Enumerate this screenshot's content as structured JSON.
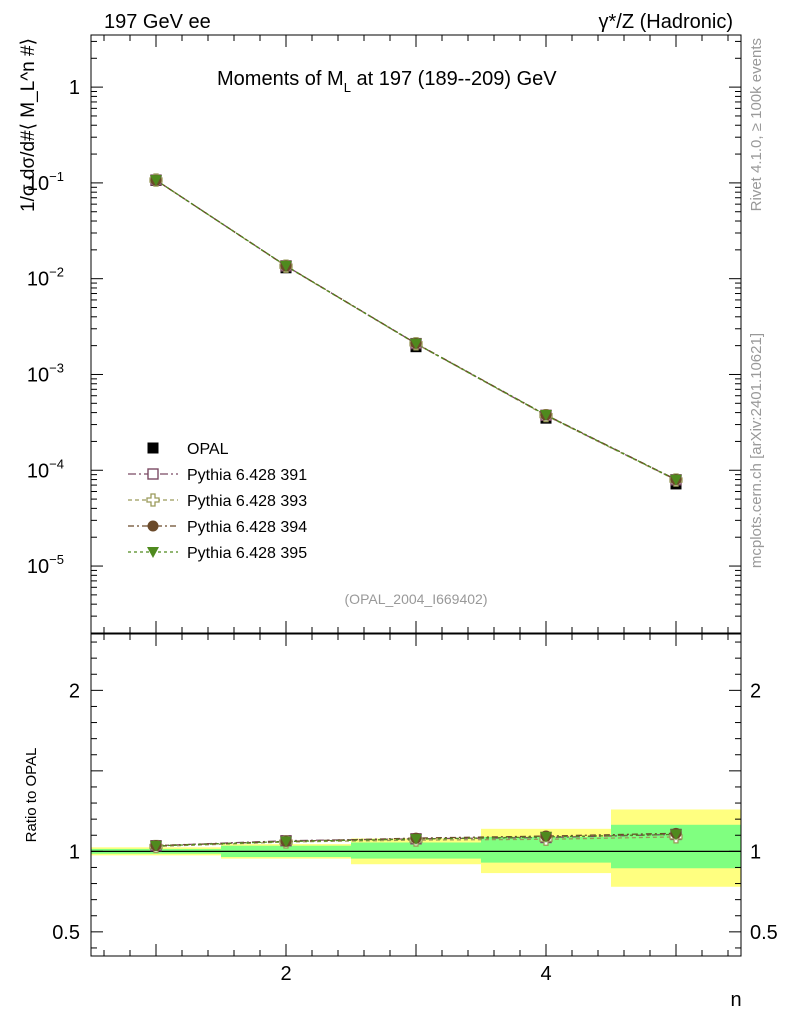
{
  "header": {
    "left": "197 GeV ee",
    "right": "γ*/Z (Hadronic)"
  },
  "side_labels": {
    "rivet": "Rivet 4.1.0, ≥ 100k events",
    "mcplots": "mcplots.cern.ch [arXiv:2401.10621]"
  },
  "colors": {
    "opal": "#000000",
    "p391": "#7b4a63",
    "p393": "#9a9a5a",
    "p394": "#6b4a2a",
    "p395": "#4f8a1e",
    "band_outer": "#ffff80",
    "band_inner": "#80ff80"
  },
  "chart_data": [
    {
      "type": "scatter",
      "title": "Moments of M_L at 197 (189--209) GeV",
      "title_main": "Moments of M",
      "title_sub": "L",
      "title_rest": " at 197 (189--209) GeV",
      "ylabel": "1/σ  dσ/d#⟨ M_L^n #⟩",
      "yscale": "log",
      "ylim": [
        2e-06,
        3.5
      ],
      "xlim": [
        0.5,
        5.5
      ],
      "ytick_labels": [
        "1",
        "10",
        "10",
        "10",
        "10",
        "10"
      ],
      "ytick_exponents": [
        "",
        "−1",
        "−2",
        "−3",
        "−4",
        "−5"
      ],
      "analysis_id": "(OPAL_2004_I669402)",
      "x": [
        1,
        2,
        3,
        4,
        5
      ],
      "series": [
        {
          "name": "OPAL",
          "values": [
            0.106,
            0.013,
            0.00195,
            0.00035,
            7.2e-05
          ]
        },
        {
          "name": "Pythia 6.428 391",
          "values": [
            0.107,
            0.0136,
            0.0021,
            0.000375,
            7.95e-05
          ]
        },
        {
          "name": "Pythia 6.428 393",
          "values": [
            0.107,
            0.0135,
            0.00209,
            0.000372,
            7.9e-05
          ]
        },
        {
          "name": "Pythia 6.428 394",
          "values": [
            0.107,
            0.0136,
            0.00211,
            0.000378,
            8e-05
          ]
        },
        {
          "name": "Pythia 6.428 395",
          "values": [
            0.107,
            0.0136,
            0.0021,
            0.000377,
            7.97e-05
          ]
        }
      ],
      "legend": [
        "OPAL",
        "Pythia 6.428 391",
        "Pythia 6.428 393",
        "Pythia 6.428 394",
        "Pythia 6.428 395"
      ]
    },
    {
      "type": "scatter",
      "ylabel": "Ratio to OPAL",
      "xlabel": "n",
      "ylim": [
        0.35,
        2.35
      ],
      "xlim": [
        0.5,
        5.5
      ],
      "ytick_labels": [
        "0.5",
        "1",
        "2"
      ],
      "xtick_labels": [
        "2",
        "4"
      ],
      "x": [
        1,
        2,
        3,
        4,
        5
      ],
      "band_inner": [
        [
          0.985,
          1.015
        ],
        [
          0.965,
          1.035
        ],
        [
          0.955,
          1.055
        ],
        [
          0.93,
          1.09
        ],
        [
          0.895,
          1.165
        ]
      ],
      "band_outer": [
        [
          0.975,
          1.025
        ],
        [
          0.955,
          1.045
        ],
        [
          0.92,
          1.08
        ],
        [
          0.865,
          1.14
        ],
        [
          0.78,
          1.26
        ]
      ],
      "series": [
        {
          "name": "Pythia 6.428 391",
          "values": [
            1.035,
            1.066,
            1.078,
            1.086,
            1.105
          ]
        },
        {
          "name": "Pythia 6.428 393",
          "values": [
            1.03,
            1.058,
            1.07,
            1.075,
            1.09
          ]
        },
        {
          "name": "Pythia 6.428 394",
          "values": [
            1.036,
            1.062,
            1.082,
            1.095,
            1.112
          ]
        },
        {
          "name": "Pythia 6.428 395",
          "values": [
            1.034,
            1.061,
            1.076,
            1.09,
            1.105
          ]
        }
      ]
    }
  ]
}
